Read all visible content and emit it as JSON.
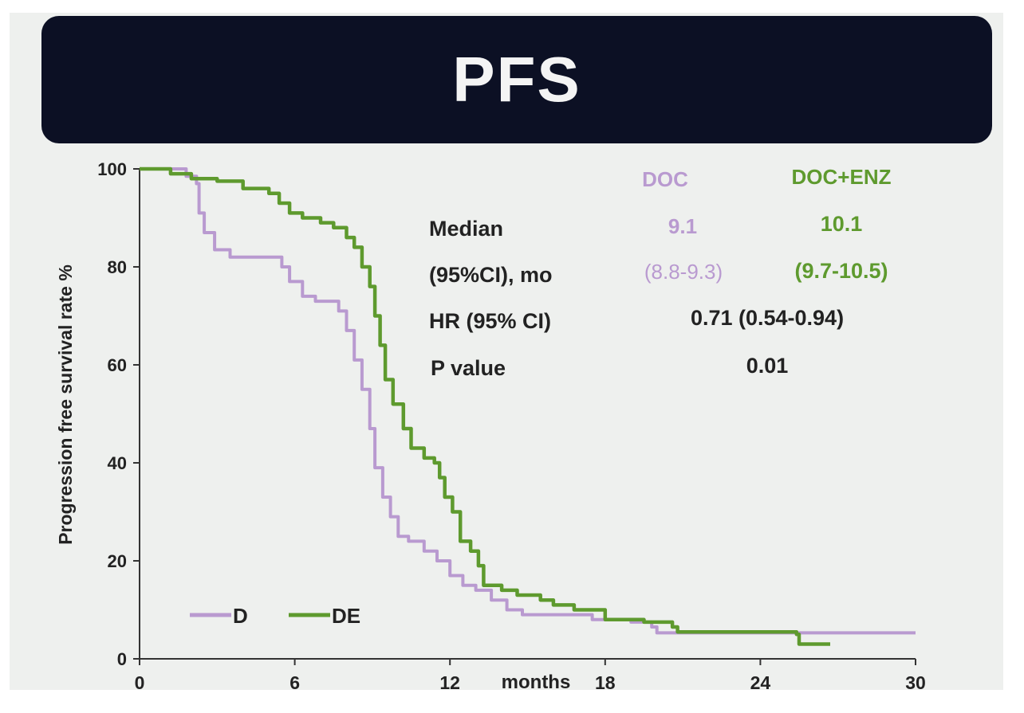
{
  "header": {
    "title": "PFS"
  },
  "stats": {
    "headers": {
      "doc": "DOC",
      "docenz": "DOC+ENZ"
    },
    "rows": {
      "median": {
        "label": "Median",
        "doc": "9.1",
        "docenz": "10.1"
      },
      "ci": {
        "label": "(95%CI), mo",
        "doc": "(8.8-9.3)",
        "docenz": "(9.7-10.5)"
      },
      "hr": {
        "label": "HR (95% CI)",
        "value": "0.71 (0.54-0.94)"
      },
      "p": {
        "label": "P value",
        "value": "0.01"
      }
    }
  },
  "colors": {
    "d": "#b99ad0",
    "de": "#5e9a2e",
    "text": "#222222"
  },
  "chart_data": {
    "type": "line",
    "title": "PFS",
    "xlabel": "months",
    "ylabel": "Progression free survival rate %",
    "xlim": [
      0,
      30
    ],
    "ylim": [
      0,
      100
    ],
    "xticks": [
      "0",
      "6",
      "12",
      "18",
      "24",
      "30"
    ],
    "yticks": [
      "0",
      "20",
      "40",
      "60",
      "80",
      "100"
    ],
    "grid": false,
    "legend_position": "bottom-left",
    "series": [
      {
        "name": "D",
        "color": "#b99ad0",
        "points": [
          [
            0,
            100
          ],
          [
            1.8,
            98.5
          ],
          [
            2.2,
            97
          ],
          [
            2.3,
            91
          ],
          [
            2.5,
            87
          ],
          [
            2.9,
            83.5
          ],
          [
            3.5,
            82
          ],
          [
            5.2,
            82
          ],
          [
            5.5,
            80
          ],
          [
            5.8,
            77
          ],
          [
            6.3,
            74
          ],
          [
            6.8,
            73
          ],
          [
            7.3,
            73
          ],
          [
            7.7,
            71
          ],
          [
            8.0,
            67
          ],
          [
            8.3,
            61
          ],
          [
            8.6,
            55
          ],
          [
            8.9,
            47
          ],
          [
            9.1,
            39
          ],
          [
            9.4,
            33
          ],
          [
            9.7,
            29
          ],
          [
            10.0,
            25
          ],
          [
            10.4,
            24
          ],
          [
            11.0,
            22
          ],
          [
            11.5,
            20
          ],
          [
            12.0,
            17
          ],
          [
            12.5,
            15
          ],
          [
            13.0,
            14
          ],
          [
            13.6,
            12
          ],
          [
            14.2,
            10
          ],
          [
            14.8,
            9
          ],
          [
            16.5,
            9
          ],
          [
            17.5,
            8
          ],
          [
            19.0,
            7.5
          ],
          [
            19.8,
            6.5
          ],
          [
            20.0,
            5.3
          ],
          [
            22.0,
            5.3
          ],
          [
            30.0,
            5.3
          ]
        ]
      },
      {
        "name": "DE",
        "color": "#5e9a2e",
        "points": [
          [
            0,
            100
          ],
          [
            1.2,
            99
          ],
          [
            2.0,
            98
          ],
          [
            3.0,
            97.5
          ],
          [
            4.0,
            96
          ],
          [
            5.0,
            95
          ],
          [
            5.4,
            93
          ],
          [
            5.8,
            91
          ],
          [
            6.3,
            90
          ],
          [
            7.0,
            89
          ],
          [
            7.5,
            88
          ],
          [
            8.0,
            86
          ],
          [
            8.3,
            84
          ],
          [
            8.6,
            80
          ],
          [
            8.9,
            76
          ],
          [
            9.1,
            70
          ],
          [
            9.3,
            64
          ],
          [
            9.5,
            57
          ],
          [
            9.8,
            52
          ],
          [
            10.2,
            47
          ],
          [
            10.5,
            43
          ],
          [
            11.0,
            41
          ],
          [
            11.4,
            40
          ],
          [
            11.6,
            37
          ],
          [
            11.8,
            33
          ],
          [
            12.1,
            30
          ],
          [
            12.4,
            24
          ],
          [
            12.8,
            22
          ],
          [
            13.1,
            19
          ],
          [
            13.3,
            15
          ],
          [
            14.0,
            14
          ],
          [
            14.6,
            13
          ],
          [
            15.5,
            12
          ],
          [
            16.0,
            11
          ],
          [
            16.8,
            10
          ],
          [
            18.0,
            8
          ],
          [
            19.5,
            7.5
          ],
          [
            20.6,
            6.5
          ],
          [
            20.8,
            5.5
          ],
          [
            24.5,
            5.5
          ],
          [
            25.4,
            5
          ],
          [
            25.5,
            3
          ],
          [
            26.7,
            3
          ]
        ]
      }
    ]
  }
}
